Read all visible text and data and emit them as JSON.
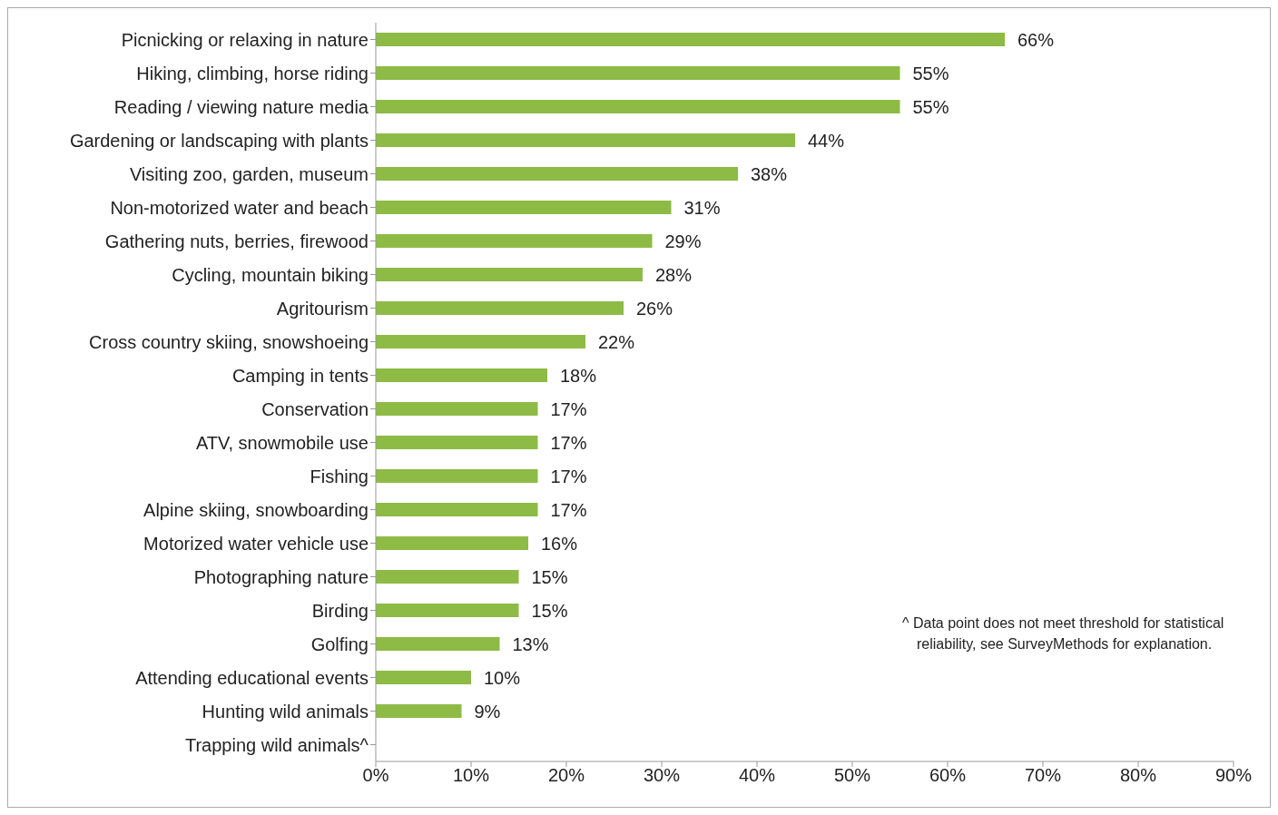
{
  "chart_data": {
    "type": "bar",
    "orientation": "horizontal",
    "categories": [
      "Picnicking or relaxing in nature",
      "Hiking, climbing, horse riding",
      "Reading / viewing nature media",
      "Gardening or landscaping with plants",
      "Visiting zoo, garden, museum",
      "Non-motorized water and beach",
      "Gathering nuts, berries, firewood",
      "Cycling, mountain biking",
      "Agritourism",
      "Cross country skiing, snowshoeing",
      "Camping in tents",
      "Conservation",
      "ATV, snowmobile use",
      "Fishing",
      "Alpine skiing, snowboarding",
      "Motorized water vehicle use",
      "Photographing nature",
      "Birding",
      "Golfing",
      "Attending educational events",
      "Hunting wild animals",
      "Trapping wild animals^"
    ],
    "values": [
      66,
      55,
      55,
      44,
      38,
      31,
      29,
      28,
      26,
      22,
      18,
      17,
      17,
      17,
      17,
      16,
      15,
      15,
      13,
      10,
      9,
      null
    ],
    "value_labels": [
      "66%",
      "55%",
      "55%",
      "44%",
      "38%",
      "31%",
      "29%",
      "28%",
      "26%",
      "22%",
      "18%",
      "17%",
      "17%",
      "17%",
      "17%",
      "16%",
      "15%",
      "15%",
      "13%",
      "10%",
      "9%",
      null
    ],
    "color": "#8dbb46",
    "xlim": [
      0,
      90
    ],
    "xticks": [
      {
        "value": 0,
        "label": "0%"
      },
      {
        "value": 10,
        "label": "10%"
      },
      {
        "value": 20,
        "label": "20%"
      },
      {
        "value": 30,
        "label": "30%"
      },
      {
        "value": 40,
        "label": "40%"
      },
      {
        "value": 50,
        "label": "50%"
      },
      {
        "value": 60,
        "label": "60%"
      },
      {
        "value": 70,
        "label": "70%"
      },
      {
        "value": 80,
        "label": "80%"
      },
      {
        "value": 90,
        "label": "90%"
      }
    ],
    "grid": false,
    "legend": false,
    "annotations": [
      "^ Data point does not meet threshold for statistical reliability, see SurveyMethods for explanation."
    ]
  }
}
